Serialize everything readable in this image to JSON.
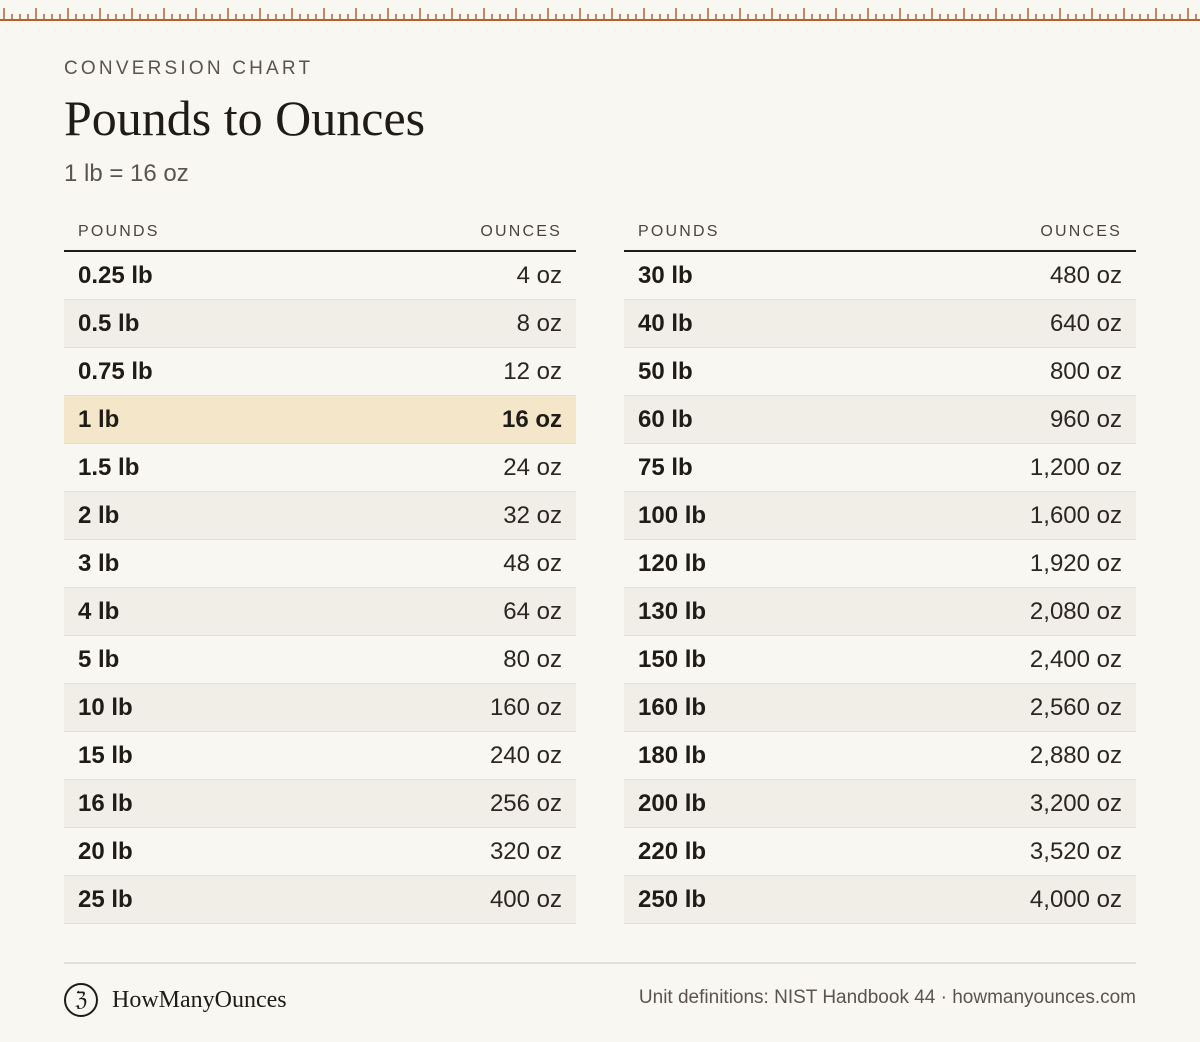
{
  "header": {
    "eyebrow": "CONVERSION CHART",
    "title": "Pounds to Ounces",
    "subtitle": "1 lb = 16 oz"
  },
  "table_left": {
    "col_pounds": "POUNDS",
    "col_ounces": "OUNCES",
    "rows": [
      {
        "lb": "0.25 lb",
        "oz": "4 oz"
      },
      {
        "lb": "0.5 lb",
        "oz": "8 oz"
      },
      {
        "lb": "0.75 lb",
        "oz": "12 oz"
      },
      {
        "lb": "1 lb",
        "oz": "16 oz",
        "highlight": true
      },
      {
        "lb": "1.5 lb",
        "oz": "24 oz"
      },
      {
        "lb": "2 lb",
        "oz": "32 oz"
      },
      {
        "lb": "3 lb",
        "oz": "48 oz"
      },
      {
        "lb": "4 lb",
        "oz": "64 oz"
      },
      {
        "lb": "5 lb",
        "oz": "80 oz"
      },
      {
        "lb": "10 lb",
        "oz": "160 oz"
      },
      {
        "lb": "15 lb",
        "oz": "240 oz"
      },
      {
        "lb": "16 lb",
        "oz": "256 oz"
      },
      {
        "lb": "20 lb",
        "oz": "320 oz"
      },
      {
        "lb": "25 lb",
        "oz": "400 oz"
      }
    ]
  },
  "table_right": {
    "col_pounds": "POUNDS",
    "col_ounces": "OUNCES",
    "rows": [
      {
        "lb": "30 lb",
        "oz": "480 oz"
      },
      {
        "lb": "40 lb",
        "oz": "640 oz"
      },
      {
        "lb": "50 lb",
        "oz": "800 oz"
      },
      {
        "lb": "60 lb",
        "oz": "960 oz"
      },
      {
        "lb": "75 lb",
        "oz": "1,200 oz"
      },
      {
        "lb": "100 lb",
        "oz": "1,600 oz"
      },
      {
        "lb": "120 lb",
        "oz": "1,920 oz"
      },
      {
        "lb": "130 lb",
        "oz": "2,080 oz"
      },
      {
        "lb": "150 lb",
        "oz": "2,400 oz"
      },
      {
        "lb": "160 lb",
        "oz": "2,560 oz"
      },
      {
        "lb": "180 lb",
        "oz": "2,880 oz"
      },
      {
        "lb": "200 lb",
        "oz": "3,200 oz"
      },
      {
        "lb": "220 lb",
        "oz": "3,520 oz"
      },
      {
        "lb": "250 lb",
        "oz": "4,000 oz"
      }
    ]
  },
  "footer": {
    "brand_mark": "ℨ",
    "brand_name": "HowManyOunces",
    "source": "Unit definitions: NIST Handbook 44 · howmanyounces.com"
  },
  "colors": {
    "ruler": "#b4602e",
    "background": "#f9f7f2",
    "highlight": "#f4e6c8"
  },
  "icons": {
    "ruler": "ruler-ticks-icon",
    "brand": "brand-logo-icon"
  }
}
